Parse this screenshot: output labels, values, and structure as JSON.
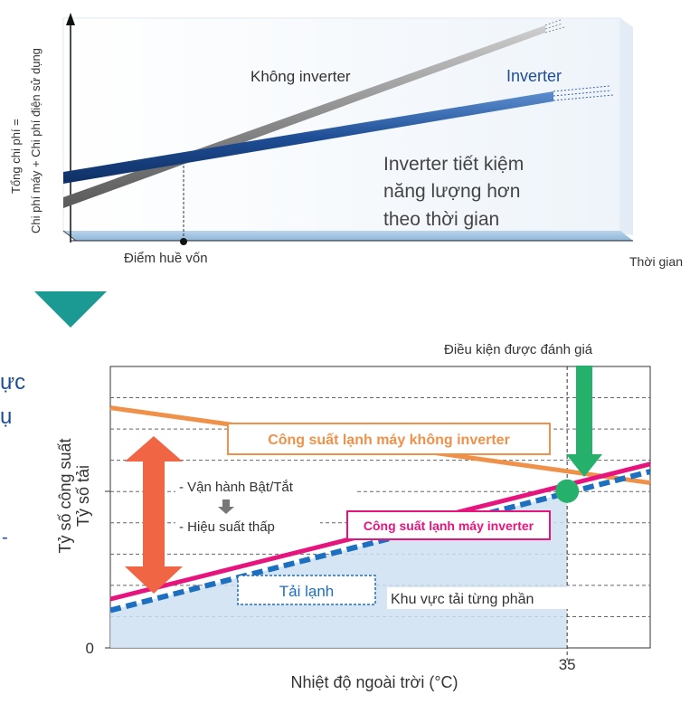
{
  "chart_data": [
    {
      "type": "line",
      "title": "",
      "xlabel": "Thời gian",
      "ylabel_line1": "Tổng chi phí =",
      "ylabel_line2": "Chi phí máy + Chi phí điện sử dụng",
      "x": [
        0,
        1
      ],
      "series": [
        {
          "name": "Không inverter",
          "values": [
            0.13,
            1.0
          ],
          "color": "#8a8a8a"
        },
        {
          "name": "Inverter",
          "values": [
            0.3,
            0.72
          ],
          "color": "#1f4e96"
        }
      ],
      "ylim": [
        0,
        1
      ],
      "annotations": {
        "breakeven": "Điểm huề vốn",
        "breakeven_x": 0.24,
        "saving_line1": "Inverter tiết kiệm",
        "saving_line2": "năng lượng hơn",
        "saving_line3": "theo thời gian"
      }
    },
    {
      "type": "line",
      "title": "",
      "xlabel": "Nhiệt độ ngoài trời (°C)",
      "ylabel_line1": "Tỷ số công suất",
      "ylabel_line2": "Tỷ số tải",
      "x_ticks": [
        {
          "value": 35,
          "label": "35"
        }
      ],
      "y_ticks": [
        {
          "value": 0,
          "label": "0"
        }
      ],
      "xlim": [
        -20,
        45
      ],
      "ylim": [
        0,
        1.5
      ],
      "series": [
        {
          "name": "Công suất lạnh máy không inverter",
          "x": [
            -20,
            45
          ],
          "values": [
            1.28,
            0.88
          ],
          "color": "#f0914a"
        },
        {
          "name": "Công suất lạnh máy inverter",
          "x": [
            -20,
            45
          ],
          "values": [
            0.26,
            0.98
          ],
          "color": "#e6157e"
        },
        {
          "name": "Tải lạnh",
          "x": [
            -20,
            45
          ],
          "values": [
            0.2,
            0.94
          ],
          "color": "#1d6fc0"
        }
      ],
      "annotations": {
        "rated_condition": "Điều kiện được đánh giá",
        "rated_x": 35,
        "onoff": "- Vận hành Bật/Tắt",
        "low_eff": "- Hiệu suất thấp",
        "partial_load": "Khu vực tải từng phần"
      }
    }
  ],
  "side_text": [
    "ực",
    "ụ"
  ],
  "colors": {
    "triangle": "#1a9a93",
    "arrow_red": "#f06544",
    "arrow_green": "#25b06b",
    "side_text": "#1f4e96",
    "panel_bg": "#ffffff"
  }
}
